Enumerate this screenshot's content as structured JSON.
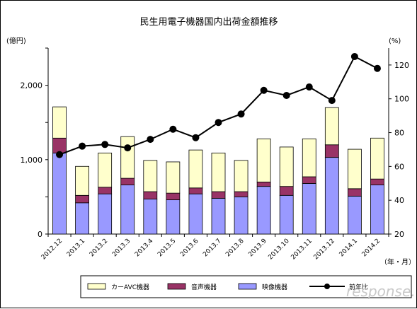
{
  "chart_data": {
    "type": "bar",
    "title": "民生用電子機器国内出荷金額推移",
    "y_left_unit": "(億円)",
    "y_right_unit": "(%)",
    "x_unit": "（年・月）",
    "y_left_ticks": [
      "0",
      "1,000",
      "2,000"
    ],
    "y_right_ticks": [
      "20",
      "40",
      "60",
      "80",
      "100",
      "120"
    ],
    "ylim_left": [
      0,
      2500
    ],
    "ylim_right": [
      20,
      130
    ],
    "grid": false,
    "legend_position": "bottom",
    "categories": [
      "2012.12",
      "2013.1",
      "2013.2",
      "2013.3",
      "2013.4",
      "2013.5",
      "2013.6",
      "2013.7",
      "2013.8",
      "2013.9",
      "2013.10",
      "2013.11",
      "2013.12",
      "2014.1",
      "2014.2"
    ],
    "stacked_series": [
      {
        "name": "映像機器",
        "color": "#9999ff",
        "values": [
          1090,
          420,
          540,
          660,
          470,
          460,
          540,
          480,
          500,
          640,
          520,
          680,
          1030,
          510,
          660
        ]
      },
      {
        "name": "音声機器",
        "color": "#993366",
        "values": [
          200,
          100,
          90,
          90,
          100,
          90,
          80,
          90,
          70,
          60,
          120,
          90,
          170,
          100,
          80
        ]
      },
      {
        "name": "カーAVC機器",
        "color": "#ffffcc",
        "values": [
          420,
          390,
          460,
          560,
          420,
          420,
          510,
          520,
          420,
          580,
          530,
          510,
          500,
          530,
          550
        ]
      }
    ],
    "line_series": {
      "name": "前年比",
      "color": "#000000",
      "axis": "right",
      "values": [
        67,
        72,
        73,
        71,
        76,
        82,
        77,
        86,
        91,
        105,
        102,
        107,
        99,
        125,
        118
      ]
    }
  },
  "watermark": "response."
}
